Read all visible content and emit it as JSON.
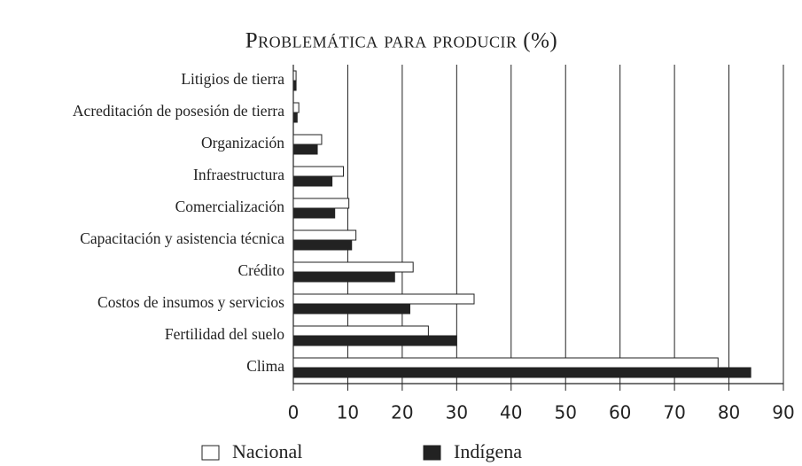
{
  "chart_data": {
    "type": "hbar",
    "title": "Problemática para producir (%)",
    "categories": [
      "Litigios de tierra",
      "Acreditación de posesión de tierra",
      "Organización",
      "Infraestructura",
      "Comercialización",
      "Capacitación y asistencia técnica",
      "Crédito",
      "Costos de insumos y servicios",
      "Fertilidad del suelo",
      "Clima"
    ],
    "series": [
      {
        "name": "Nacional",
        "color": "#ffffff",
        "values": [
          0.5,
          1.0,
          5.2,
          9.2,
          10.2,
          11.5,
          22.0,
          33.2,
          24.8,
          78.0
        ]
      },
      {
        "name": "Indígena",
        "color": "#222222",
        "values": [
          0.5,
          0.7,
          4.4,
          7.1,
          7.6,
          10.7,
          18.6,
          21.4,
          30.0,
          84.0
        ]
      }
    ],
    "xlim": [
      0,
      90
    ],
    "xticks": [
      0,
      10,
      20,
      30,
      40,
      50,
      60,
      70,
      80,
      90
    ],
    "grid": true,
    "legend": "bottom"
  }
}
